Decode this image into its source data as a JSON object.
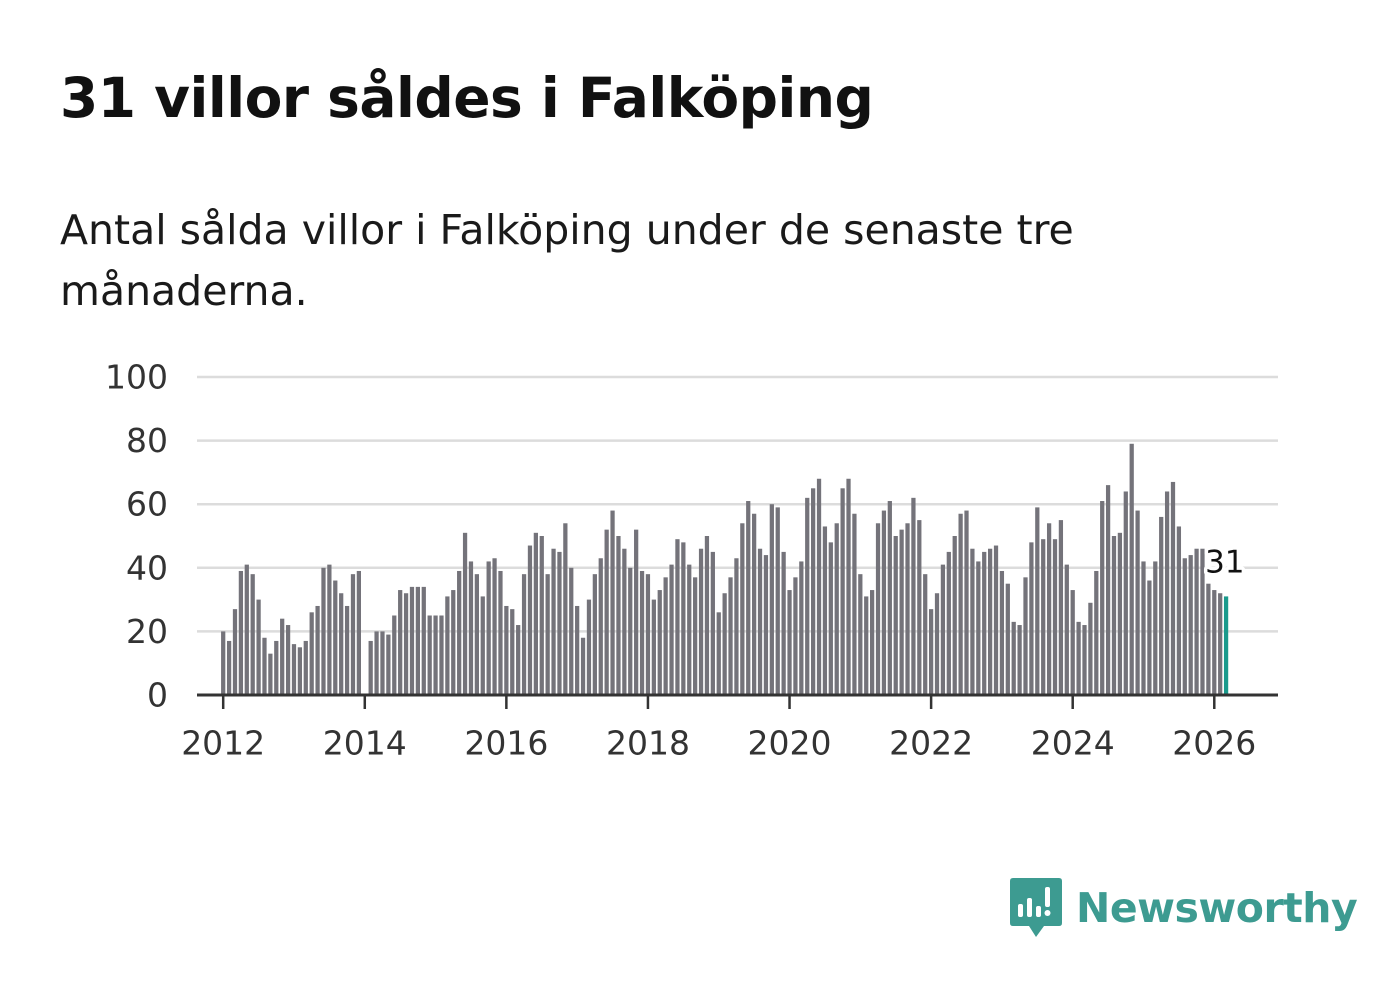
{
  "header": {
    "title": "31 villor såldes i Falköping",
    "subtitle": "Antal sålda villor i Falköping under de senaste tre månaderna."
  },
  "brand": {
    "name": "Newsworthy",
    "color": "#3d9b91",
    "icon": "newsworthy-chart-bubble-icon"
  },
  "colors": {
    "bar": "#74737a",
    "highlight": "#1a9a8c",
    "grid": "#dcdcdc",
    "axis": "#333333"
  },
  "chart_data": {
    "type": "bar",
    "title": "31 villor såldes i Falköping",
    "subtitle": "Antal sålda villor i Falköping under de senaste tre månaderna.",
    "xlabel": "",
    "ylabel": "",
    "x_start": 2012,
    "x_interval_months": 1,
    "xlim": [
      2011.63,
      2026.9
    ],
    "ylim": [
      0,
      100
    ],
    "yticks": [
      0,
      20,
      40,
      60,
      80,
      100
    ],
    "xticks": [
      2012,
      2014,
      2016,
      2018,
      2020,
      2022,
      2024,
      2026
    ],
    "grid": true,
    "series": [
      {
        "name": "Antal sålda villor",
        "values": [
          20,
          17,
          27,
          39,
          41,
          38,
          30,
          18,
          13,
          17,
          24,
          22,
          16,
          15,
          17,
          26,
          28,
          40,
          41,
          36,
          32,
          28,
          38,
          39,
          0,
          17,
          20,
          20,
          19,
          25,
          33,
          32,
          34,
          34,
          34,
          25,
          25,
          25,
          31,
          33,
          39,
          51,
          42,
          38,
          31,
          42,
          43,
          39,
          28,
          27,
          22,
          38,
          47,
          51,
          50,
          38,
          46,
          45,
          54,
          40,
          28,
          18,
          30,
          38,
          43,
          52,
          58,
          50,
          46,
          40,
          52,
          39,
          38,
          30,
          33,
          37,
          41,
          49,
          48,
          41,
          37,
          46,
          50,
          45,
          26,
          32,
          37,
          43,
          54,
          61,
          57,
          46,
          44,
          60,
          59,
          45,
          33,
          37,
          42,
          62,
          65,
          68,
          53,
          48,
          54,
          65,
          68,
          57,
          38,
          31,
          33,
          54,
          58,
          61,
          50,
          52,
          54,
          62,
          55,
          38,
          27,
          32,
          41,
          45,
          50,
          57,
          58,
          46,
          42,
          45,
          46,
          47,
          39,
          35,
          23,
          22,
          37,
          48,
          59,
          49,
          54,
          49,
          55,
          41,
          33,
          23,
          22,
          29,
          39,
          61,
          66,
          50,
          51,
          64,
          79,
          58,
          42,
          36,
          42,
          56,
          64,
          67,
          53,
          43,
          44,
          46,
          46,
          35,
          33,
          32,
          31
        ]
      }
    ],
    "highlight": {
      "label": "31",
      "value": 31,
      "index": 170
    }
  }
}
